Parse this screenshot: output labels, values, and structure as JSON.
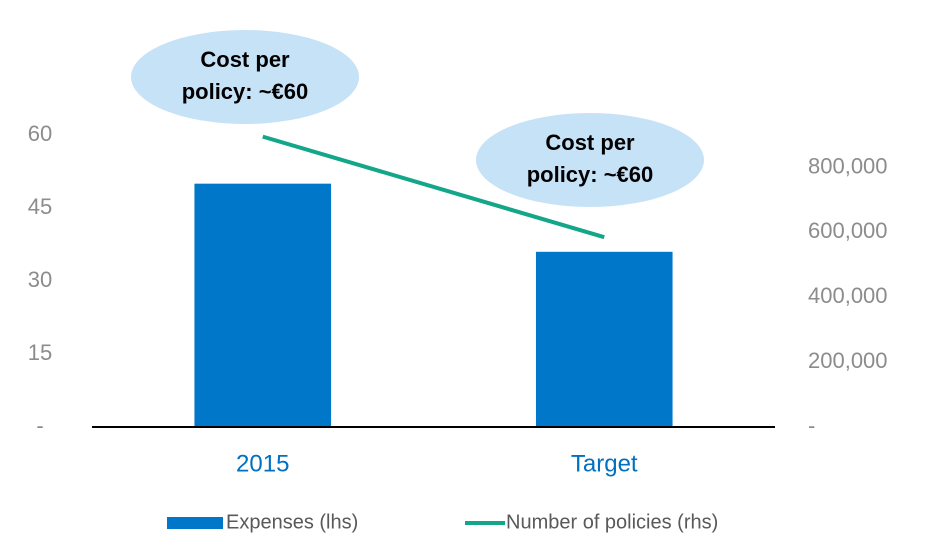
{
  "chart_data": {
    "type": "bar_line",
    "categories": [
      "2015",
      "Target"
    ],
    "series": [
      {
        "name": "Expenses (lhs)",
        "type": "bar",
        "color": "#0077c8",
        "values": [
          50,
          36
        ]
      },
      {
        "name": "Number of policies (rhs)",
        "type": "line",
        "axis": "y2",
        "color": "#13a689",
        "values": [
          895000,
          585000
        ]
      }
    ],
    "ylim": [
      0,
      60
    ],
    "yticks": [
      {
        "value": 0,
        "label": "-"
      },
      15,
      30,
      45,
      60
    ],
    "y2lim": [
      0,
      900000
    ],
    "y2ticks": [
      {
        "value": 0,
        "label": "-"
      },
      {
        "value": 200000,
        "label": "200,000"
      },
      {
        "value": 400000,
        "label": "400,000"
      },
      {
        "value": 600000,
        "label": "600,000"
      },
      {
        "value": 800000,
        "label": "800,000"
      }
    ],
    "annotations": [
      {
        "lines": [
          "Cost per",
          "policy: ~€60"
        ]
      },
      {
        "lines": [
          "Cost per",
          "policy: ~€60"
        ]
      }
    ],
    "legend": "bottom"
  }
}
